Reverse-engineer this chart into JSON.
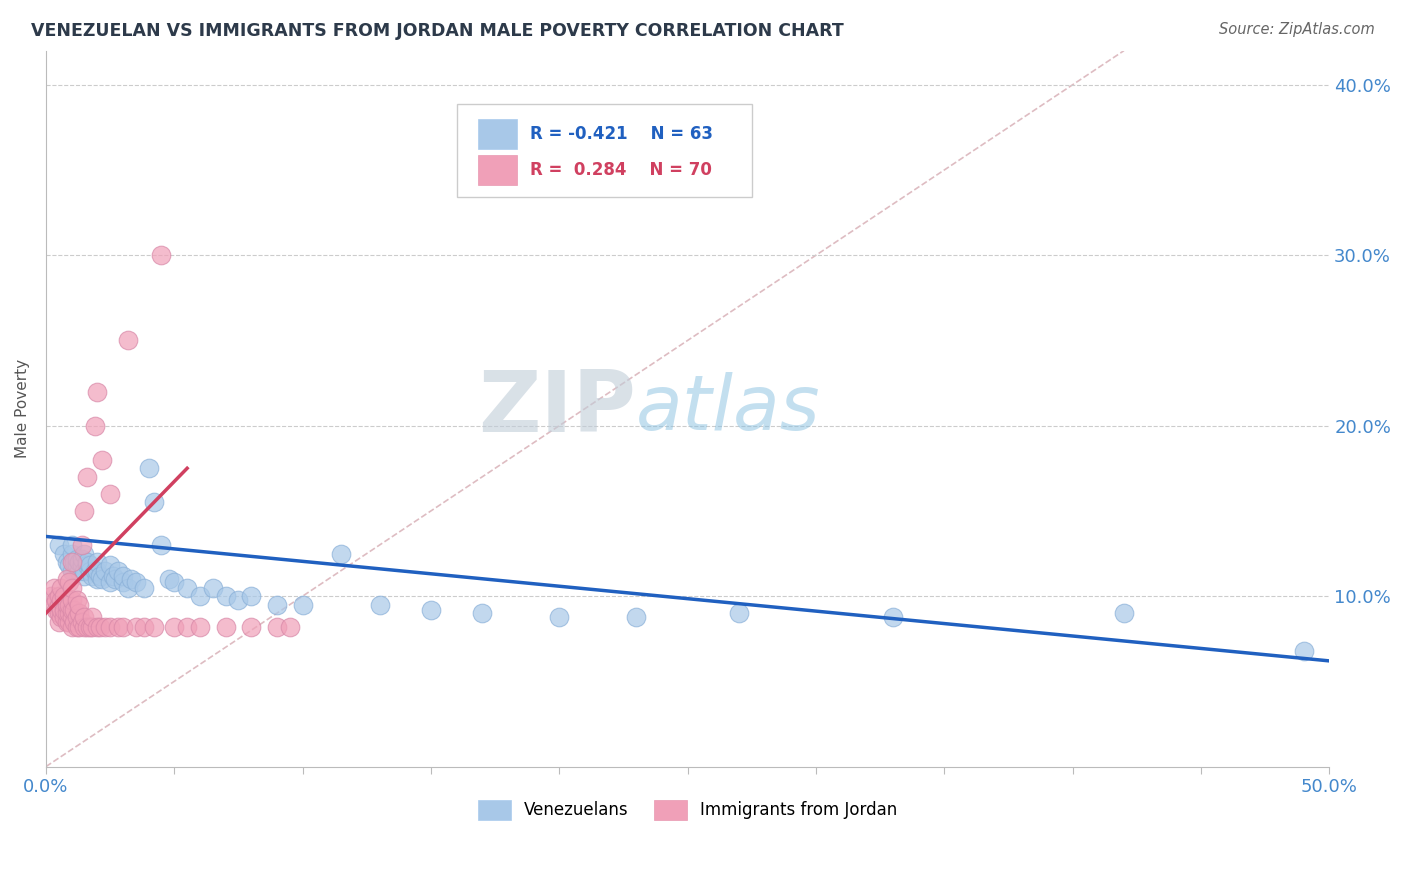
{
  "title": "VENEZUELAN VS IMMIGRANTS FROM JORDAN MALE POVERTY CORRELATION CHART",
  "source": "Source: ZipAtlas.com",
  "ylabel": "Male Poverty",
  "xlim": [
    0.0,
    0.5
  ],
  "ylim": [
    0.0,
    0.42
  ],
  "xtick_positions": [
    0.0,
    0.05,
    0.1,
    0.15,
    0.2,
    0.25,
    0.3,
    0.35,
    0.4,
    0.45,
    0.5
  ],
  "xticklabels": [
    "0.0%",
    "",
    "",
    "",
    "",
    "",
    "",
    "",
    "",
    "",
    "50.0%"
  ],
  "ytick_positions": [
    0.0,
    0.1,
    0.2,
    0.3,
    0.4
  ],
  "yticklabels": [
    "",
    "10.0%",
    "20.0%",
    "30.0%",
    "40.0%"
  ],
  "blue_color": "#a8c8e8",
  "pink_color": "#f0a0b8",
  "blue_line_color": "#2060c0",
  "pink_line_color": "#d04060",
  "blue_label": "Venezuelans",
  "pink_label": "Immigrants from Jordan",
  "watermark_zip": "ZIP",
  "watermark_atlas": "atlas",
  "background_color": "#ffffff",
  "grid_color": "#cccccc",
  "venezuelans_x": [
    0.005,
    0.007,
    0.008,
    0.009,
    0.01,
    0.01,
    0.01,
    0.011,
    0.012,
    0.012,
    0.013,
    0.013,
    0.014,
    0.014,
    0.015,
    0.015,
    0.015,
    0.016,
    0.016,
    0.017,
    0.017,
    0.018,
    0.019,
    0.02,
    0.02,
    0.02,
    0.021,
    0.022,
    0.023,
    0.025,
    0.025,
    0.026,
    0.027,
    0.028,
    0.03,
    0.03,
    0.032,
    0.033,
    0.035,
    0.038,
    0.04,
    0.042,
    0.045,
    0.048,
    0.05,
    0.055,
    0.06,
    0.065,
    0.07,
    0.075,
    0.08,
    0.09,
    0.1,
    0.115,
    0.13,
    0.15,
    0.17,
    0.2,
    0.23,
    0.27,
    0.33,
    0.42,
    0.49
  ],
  "venezuelans_y": [
    0.13,
    0.125,
    0.12,
    0.118,
    0.115,
    0.125,
    0.13,
    0.12,
    0.118,
    0.122,
    0.115,
    0.12,
    0.118,
    0.122,
    0.112,
    0.115,
    0.125,
    0.118,
    0.12,
    0.115,
    0.118,
    0.112,
    0.115,
    0.11,
    0.115,
    0.12,
    0.112,
    0.11,
    0.115,
    0.108,
    0.118,
    0.112,
    0.11,
    0.115,
    0.108,
    0.112,
    0.105,
    0.11,
    0.108,
    0.105,
    0.175,
    0.155,
    0.13,
    0.11,
    0.108,
    0.105,
    0.1,
    0.105,
    0.1,
    0.098,
    0.1,
    0.095,
    0.095,
    0.125,
    0.095,
    0.092,
    0.09,
    0.088,
    0.088,
    0.09,
    0.088,
    0.09,
    0.068
  ],
  "jordan_x": [
    0.002,
    0.003,
    0.003,
    0.004,
    0.004,
    0.005,
    0.005,
    0.005,
    0.005,
    0.006,
    0.006,
    0.006,
    0.006,
    0.007,
    0.007,
    0.007,
    0.008,
    0.008,
    0.008,
    0.008,
    0.009,
    0.009,
    0.009,
    0.009,
    0.01,
    0.01,
    0.01,
    0.01,
    0.01,
    0.01,
    0.011,
    0.011,
    0.012,
    0.012,
    0.012,
    0.013,
    0.013,
    0.013,
    0.014,
    0.014,
    0.015,
    0.015,
    0.015,
    0.016,
    0.016,
    0.017,
    0.018,
    0.018,
    0.019,
    0.02,
    0.02,
    0.021,
    0.022,
    0.023,
    0.025,
    0.025,
    0.028,
    0.03,
    0.032,
    0.035,
    0.038,
    0.042,
    0.045,
    0.05,
    0.055,
    0.06,
    0.07,
    0.08,
    0.09,
    0.095
  ],
  "jordan_y": [
    0.1,
    0.095,
    0.105,
    0.092,
    0.098,
    0.085,
    0.09,
    0.095,
    0.1,
    0.088,
    0.092,
    0.098,
    0.105,
    0.088,
    0.092,
    0.1,
    0.085,
    0.09,
    0.095,
    0.11,
    0.085,
    0.09,
    0.095,
    0.108,
    0.082,
    0.088,
    0.092,
    0.098,
    0.105,
    0.12,
    0.085,
    0.092,
    0.082,
    0.088,
    0.098,
    0.082,
    0.09,
    0.095,
    0.085,
    0.13,
    0.082,
    0.088,
    0.15,
    0.082,
    0.17,
    0.082,
    0.082,
    0.088,
    0.2,
    0.082,
    0.22,
    0.082,
    0.18,
    0.082,
    0.082,
    0.16,
    0.082,
    0.082,
    0.25,
    0.082,
    0.082,
    0.082,
    0.3,
    0.082,
    0.082,
    0.082,
    0.082,
    0.082,
    0.082,
    0.082
  ],
  "blue_line_x": [
    0.0,
    0.5
  ],
  "blue_line_y": [
    0.135,
    0.062
  ],
  "pink_line_x": [
    0.0,
    0.055
  ],
  "pink_line_y": [
    0.09,
    0.175
  ],
  "diag_line_x": [
    0.0,
    0.42
  ],
  "diag_line_y": [
    0.0,
    0.42
  ]
}
